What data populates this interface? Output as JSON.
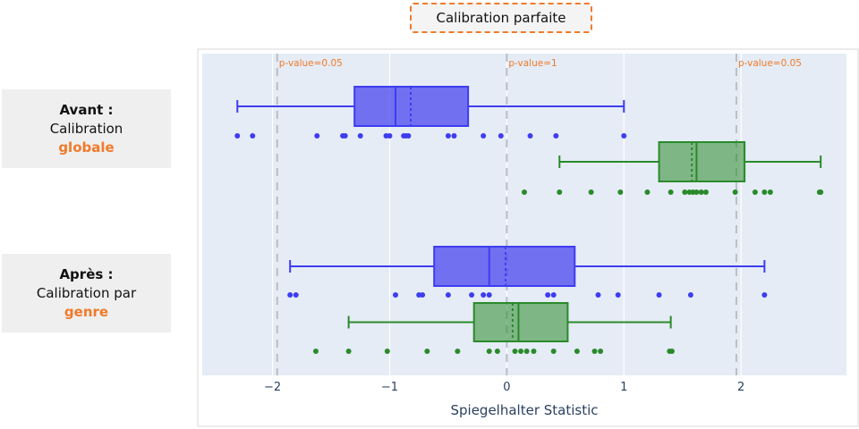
{
  "header": {
    "title": "Calibration parfaite"
  },
  "groups": [
    {
      "line1": "Avant :",
      "line2": "Calibration",
      "line3": "globale"
    },
    {
      "line1": "Après :",
      "line2": "Calibration par",
      "line3": "genre"
    }
  ],
  "colors": {
    "accent": "#f07a2a",
    "blue": "#3e3cf0",
    "green": "#2a8a2a",
    "plot_bg": "#e5ecf6"
  },
  "chart_data": {
    "type": "box",
    "xlabel": "Spiegelhalter Statistic",
    "xlim": [
      -2.6,
      2.9
    ],
    "xticks": [
      -2,
      -1,
      0,
      1,
      2
    ],
    "xtick_labels": [
      "−2",
      "−1",
      "0",
      "1",
      "2"
    ],
    "reference_lines": [
      {
        "x": -1.96,
        "label": "p-value=0.05"
      },
      {
        "x": 0,
        "label": "p-value=1"
      },
      {
        "x": 1.96,
        "label": "p-value=0.05"
      }
    ],
    "boxes": [
      {
        "group": "Avant : Calibration globale",
        "color": "blue",
        "whisker_low": -2.3,
        "q1": -1.3,
        "median": -0.95,
        "mean": -0.82,
        "q3": -0.33,
        "whisker_high": 1.0,
        "points": [
          -2.3,
          -2.17,
          -1.62,
          -1.4,
          -1.38,
          -1.25,
          -1.03,
          -1.0,
          -0.88,
          -0.86,
          -0.84,
          -0.5,
          -0.45,
          -0.2,
          -0.05,
          0.2,
          0.42,
          1.0
        ]
      },
      {
        "group": "Avant : Calibration globale",
        "color": "green",
        "whisker_low": 0.45,
        "q1": 1.3,
        "median": 1.62,
        "mean": 1.58,
        "q3": 2.03,
        "whisker_high": 2.68,
        "points": [
          0.15,
          0.45,
          0.72,
          0.97,
          1.2,
          1.4,
          1.52,
          1.56,
          1.59,
          1.62,
          1.66,
          1.7,
          1.95,
          2.12,
          2.2,
          2.25,
          2.67,
          2.68
        ]
      },
      {
        "group": "Après : Calibration par genre",
        "color": "blue",
        "whisker_low": -1.85,
        "q1": -0.62,
        "median": -0.15,
        "mean": -0.01,
        "q3": 0.58,
        "whisker_high": 2.2,
        "points": [
          -1.85,
          -1.8,
          -0.95,
          -0.75,
          -0.72,
          -0.5,
          -0.3,
          -0.2,
          -0.15,
          0.35,
          0.4,
          0.78,
          0.95,
          1.3,
          1.57,
          2.2
        ]
      },
      {
        "group": "Après : Calibration par genre",
        "color": "green",
        "whisker_low": -1.35,
        "q1": -0.28,
        "median": 0.1,
        "mean": 0.05,
        "q3": 0.52,
        "whisker_high": 1.4,
        "points": [
          -1.63,
          -1.35,
          -1.02,
          -0.68,
          -0.42,
          -0.15,
          -0.08,
          0.07,
          0.12,
          0.17,
          0.23,
          0.4,
          0.6,
          0.75,
          0.8,
          1.39,
          1.41
        ]
      }
    ]
  }
}
